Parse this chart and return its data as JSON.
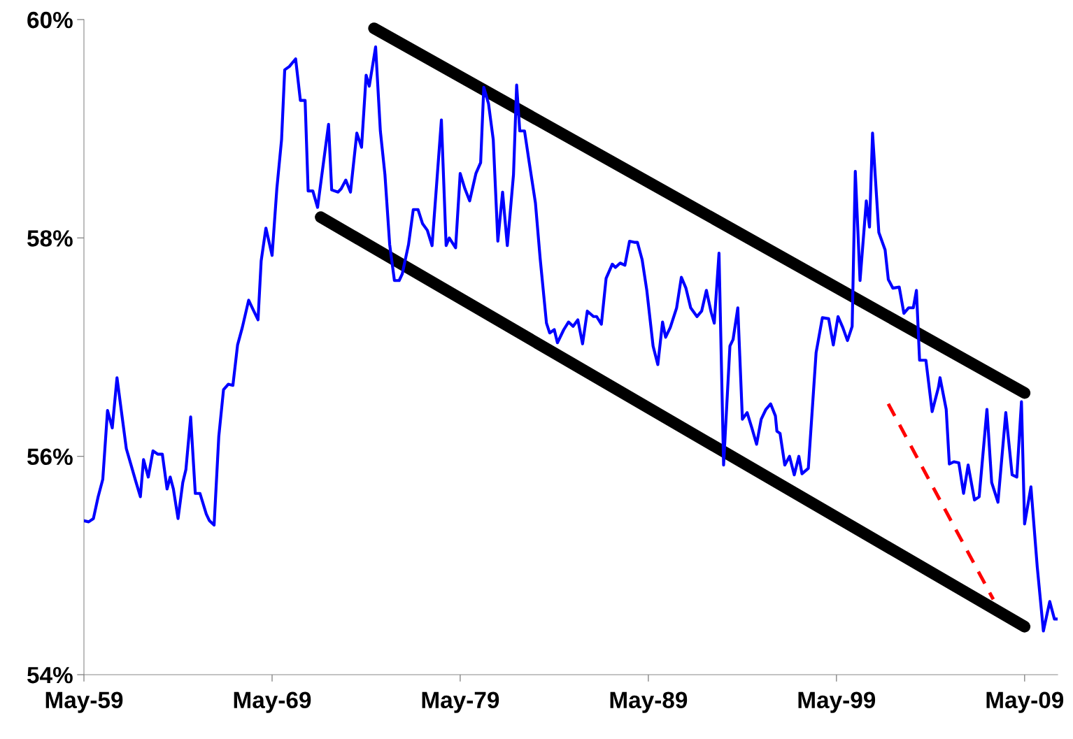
{
  "chart_data": {
    "type": "line",
    "xlim": [
      "1959-05",
      "2011-02"
    ],
    "ylim": [
      54,
      60
    ],
    "xticks": [
      {
        "value": "1959-05",
        "label": "May-59"
      },
      {
        "value": "1969-05",
        "label": "May-69"
      },
      {
        "value": "1979-05",
        "label": "May-79"
      },
      {
        "value": "1989-05",
        "label": "May-89"
      },
      {
        "value": "1999-05",
        "label": "May-99"
      },
      {
        "value": "2009-05",
        "label": "May-09"
      }
    ],
    "yticks": [
      {
        "value": 54,
        "label": "54%"
      },
      {
        "value": 56,
        "label": "56%"
      },
      {
        "value": 58,
        "label": "58%"
      },
      {
        "value": 60,
        "label": "60%"
      }
    ],
    "grid": false,
    "marker": "none",
    "series": [
      {
        "color": "#0000ff",
        "line_style": "solid",
        "x": [
          "1959-05",
          "1959-08",
          "1959-11",
          "1960-02",
          "1960-05",
          "1960-08",
          "1960-11",
          "1961-02",
          "1961-05",
          "1961-08",
          "1961-11",
          "1962-02",
          "1962-05",
          "1962-07",
          "1962-10",
          "1963-01",
          "1963-04",
          "1963-07",
          "1963-10",
          "1963-12",
          "1964-02",
          "1964-05",
          "1964-08",
          "1964-10",
          "1965-01",
          "1965-04",
          "1965-07",
          "1965-11",
          "1966-01",
          "1966-04",
          "1966-07",
          "1966-10",
          "1967-01",
          "1967-04",
          "1967-07",
          "1967-10",
          "1968-02",
          "1968-05",
          "1968-08",
          "1968-10",
          "1969-01",
          "1969-05",
          "1969-08",
          "1969-11",
          "1970-01",
          "1970-04",
          "1970-08",
          "1970-11",
          "1971-02",
          "1971-04",
          "1971-07",
          "1971-10",
          "1972-02",
          "1972-05",
          "1972-07",
          "1972-11",
          "1973-01",
          "1973-04",
          "1973-07",
          "1973-11",
          "1974-02",
          "1974-05",
          "1974-07",
          "1974-11",
          "1975-02",
          "1975-05",
          "1975-08",
          "1975-11",
          "1976-02",
          "1976-04",
          "1976-08",
          "1976-11",
          "1977-02",
          "1977-05",
          "1977-08",
          "1977-11",
          "1978-05",
          "1978-08",
          "1978-10",
          "1979-02",
          "1979-05",
          "1979-08",
          "1979-11",
          "1980-03",
          "1980-06",
          "1980-08",
          "1980-11",
          "1981-02",
          "1981-05",
          "1981-08",
          "1981-11",
          "1982-03",
          "1982-05",
          "1982-07",
          "1982-10",
          "1983-01",
          "1983-05",
          "1983-08",
          "1983-12",
          "1984-02",
          "1984-05",
          "1984-07",
          "1984-11",
          "1985-02",
          "1985-05",
          "1985-08",
          "1985-11",
          "1986-02",
          "1986-06",
          "1986-08",
          "1986-11",
          "1987-02",
          "1987-06",
          "1987-08",
          "1987-11",
          "1988-02",
          "1988-05",
          "1988-08",
          "1988-10",
          "1989-01",
          "1989-04",
          "1989-08",
          "1989-11",
          "1990-02",
          "1990-04",
          "1990-07",
          "1990-11",
          "1991-02",
          "1991-05",
          "1991-08",
          "1991-12",
          "1992-03",
          "1992-06",
          "1992-09",
          "1992-11",
          "1993-02",
          "1993-05",
          "1993-09",
          "1993-11",
          "1994-02",
          "1994-05",
          "1994-08",
          "1994-11",
          "1995-02",
          "1995-05",
          "1995-08",
          "1995-11",
          "1996-02",
          "1996-03",
          "1996-05",
          "1996-08",
          "1996-11",
          "1997-02",
          "1997-05",
          "1997-07",
          "1997-11",
          "1998-04",
          "1998-08",
          "1998-12",
          "1999-03",
          "1999-06",
          "1999-09",
          "1999-12",
          "2000-03",
          "2000-05",
          "2000-08",
          "2000-12",
          "2001-02",
          "2001-04",
          "2001-08",
          "2001-12",
          "2002-02",
          "2002-05",
          "2002-09",
          "2002-12",
          "2003-03",
          "2003-06",
          "2003-08",
          "2003-10",
          "2004-02",
          "2004-06",
          "2004-10",
          "2004-11",
          "2005-03",
          "2005-05",
          "2005-08",
          "2005-11",
          "2006-02",
          "2006-05",
          "2006-09",
          "2006-12",
          "2007-05",
          "2007-08",
          "2007-12",
          "2008-05",
          "2008-09",
          "2008-12",
          "2009-03",
          "2009-05",
          "2009-09",
          "2010-01",
          "2010-05",
          "2010-09",
          "2010-12",
          "2011-02"
        ],
        "values": [
          55.41,
          55.4,
          55.43,
          55.63,
          55.79,
          56.42,
          56.26,
          56.72,
          56.4,
          56.07,
          55.92,
          55.77,
          55.63,
          55.97,
          55.81,
          56.05,
          56.02,
          56.02,
          55.7,
          55.81,
          55.7,
          55.43,
          55.76,
          55.88,
          56.36,
          55.66,
          55.66,
          55.47,
          55.41,
          55.37,
          56.18,
          56.61,
          56.66,
          56.65,
          57.02,
          57.18,
          57.43,
          57.34,
          57.25,
          57.79,
          58.09,
          57.84,
          58.45,
          58.9,
          59.54,
          59.57,
          59.64,
          59.26,
          59.26,
          58.43,
          58.43,
          58.28,
          58.72,
          59.04,
          58.44,
          58.42,
          58.45,
          58.53,
          58.42,
          58.96,
          58.83,
          59.49,
          59.39,
          59.75,
          58.98,
          58.58,
          57.94,
          57.61,
          57.61,
          57.67,
          57.94,
          58.26,
          58.26,
          58.13,
          58.07,
          57.93,
          59.08,
          57.93,
          58.0,
          57.91,
          58.59,
          58.45,
          58.34,
          58.59,
          58.69,
          59.38,
          59.23,
          58.9,
          57.97,
          58.42,
          57.93,
          58.58,
          59.4,
          58.98,
          58.98,
          58.69,
          58.32,
          57.81,
          57.22,
          57.13,
          57.16,
          57.04,
          57.16,
          57.23,
          57.19,
          57.25,
          57.03,
          57.33,
          57.28,
          57.28,
          57.21,
          57.63,
          57.76,
          57.73,
          57.77,
          57.75,
          57.97,
          57.96,
          57.96,
          57.8,
          57.52,
          57.01,
          56.84,
          57.23,
          57.09,
          57.18,
          57.36,
          57.64,
          57.54,
          57.36,
          57.28,
          57.33,
          57.52,
          57.32,
          57.22,
          57.86,
          55.92,
          57.01,
          57.07,
          57.36,
          56.34,
          56.4,
          56.26,
          56.11,
          56.34,
          56.43,
          56.48,
          56.37,
          56.23,
          56.21,
          55.92,
          56.0,
          55.83,
          56.0,
          55.84,
          55.89,
          56.95,
          57.27,
          57.26,
          57.02,
          57.28,
          57.18,
          57.06,
          57.19,
          58.61,
          57.61,
          58.34,
          58.1,
          58.96,
          58.05,
          57.89,
          57.62,
          57.54,
          57.55,
          57.31,
          57.36,
          57.36,
          57.52,
          56.88,
          56.88,
          56.41,
          56.63,
          56.72,
          56.43,
          55.93,
          55.95,
          55.94,
          55.66,
          55.92,
          55.6,
          55.63,
          56.43,
          55.76,
          55.58,
          56.4,
          55.83,
          55.81,
          56.5,
          55.38,
          55.72,
          54.99,
          54.4,
          54.67,
          54.51,
          54.51
        ]
      },
      {
        "type": "line",
        "color": "#000000",
        "line_style": "solid",
        "x": [
          "1974-10",
          "2009-05"
        ],
        "values": [
          59.92,
          56.58
        ]
      },
      {
        "type": "line",
        "color": "#000000",
        "line_style": "solid",
        "x": [
          "1971-12",
          "2009-05"
        ],
        "values": [
          58.19,
          54.44
        ]
      },
      {
        "type": "line",
        "color": "#ff0000",
        "line_style": "dashed",
        "x": [
          "2002-02",
          "2007-09"
        ],
        "values": [
          56.48,
          54.69
        ]
      }
    ]
  }
}
